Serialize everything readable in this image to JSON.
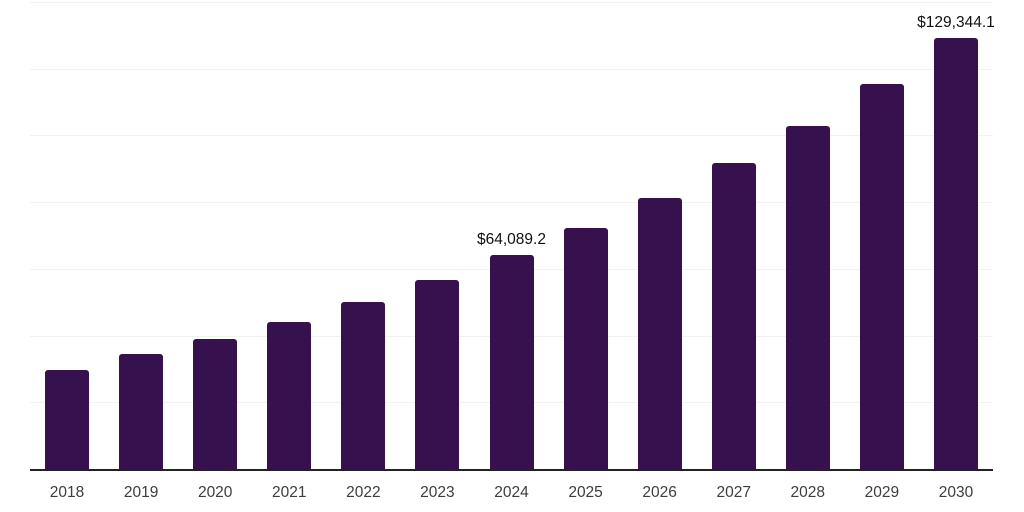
{
  "chart_data": {
    "type": "bar",
    "title": "",
    "xlabel": "",
    "ylabel": "",
    "categories": [
      "2018",
      "2019",
      "2020",
      "2021",
      "2022",
      "2023",
      "2024",
      "2025",
      "2026",
      "2027",
      "2028",
      "2029",
      "2030"
    ],
    "values": [
      29600,
      34500,
      38900,
      44200,
      50100,
      56600,
      64089.2,
      72200,
      81300,
      91600,
      102700,
      115400,
      129344.1
    ],
    "value_labels": [
      "",
      "",
      "",
      "",
      "",
      "",
      "$64,089.2",
      "",
      "",
      "",
      "",
      "",
      "$129,344.1"
    ],
    "ylim": [
      0,
      140000
    ],
    "gridline_values": [
      20000,
      40000,
      60000,
      80000,
      100000,
      120000,
      140000
    ],
    "grid": true,
    "legend_position": "none",
    "colors": {
      "bar": "#36114D",
      "gridline": "#F1F1F1",
      "axis_line": "#222222",
      "tick_label": "#3D3D3D",
      "value_label": "#111111",
      "background": "#FFFFFF"
    }
  }
}
